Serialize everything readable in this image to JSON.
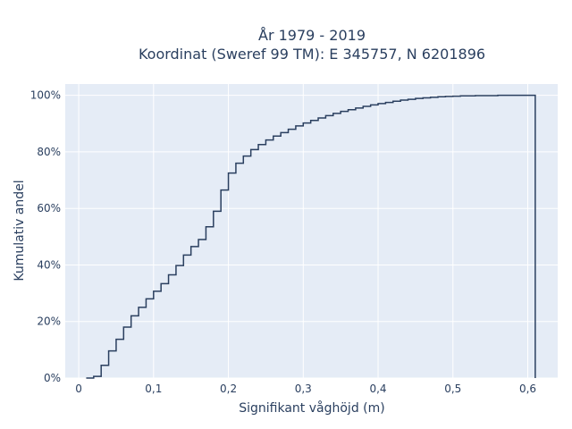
{
  "chart_data": {
    "type": "line",
    "line_shape": "step",
    "title_lines": [
      "År 1979 - 2019",
      "Koordinat (Sweref 99 TM): E 345757, N 6201896"
    ],
    "xlabel": "Signifikant våghöjd (m)",
    "ylabel": "Kumulativ andel",
    "xlim": [
      -0.018,
      0.64
    ],
    "ylim": [
      0,
      1.04
    ],
    "x_ticks": [
      0,
      0.1,
      0.2,
      0.3,
      0.4,
      0.5,
      0.6
    ],
    "x_tick_labels": [
      "0",
      "0,1",
      "0,2",
      "0,3",
      "0,4",
      "0,5",
      "0,6"
    ],
    "y_ticks": [
      0,
      0.2,
      0.4,
      0.6,
      0.8,
      1.0
    ],
    "y_tick_labels": [
      "0%",
      "20%",
      "40%",
      "60%",
      "80%",
      "100%"
    ],
    "grid": true,
    "colors": {
      "line": "#2a3f5f",
      "plot_bg": "#e5ecf6",
      "grid": "#ffffff"
    },
    "series": [
      {
        "x": [
          0.01,
          0.02,
          0.03,
          0.04,
          0.05,
          0.06,
          0.07,
          0.08,
          0.09,
          0.1,
          0.11,
          0.12,
          0.13,
          0.14,
          0.15,
          0.16,
          0.17,
          0.18,
          0.19,
          0.2,
          0.21,
          0.22,
          0.23,
          0.24,
          0.25,
          0.26,
          0.27,
          0.28,
          0.29,
          0.3,
          0.31,
          0.32,
          0.33,
          0.34,
          0.35,
          0.36,
          0.37,
          0.38,
          0.39,
          0.4,
          0.41,
          0.42,
          0.43,
          0.44,
          0.45,
          0.46,
          0.47,
          0.48,
          0.49,
          0.5,
          0.51,
          0.52,
          0.53,
          0.54,
          0.55,
          0.56,
          0.57,
          0.58,
          0.59,
          0.6,
          0.61
        ],
        "y": [
          0.0,
          0.006,
          0.045,
          0.096,
          0.137,
          0.18,
          0.22,
          0.25,
          0.28,
          0.307,
          0.334,
          0.365,
          0.398,
          0.435,
          0.465,
          0.49,
          0.535,
          0.59,
          0.665,
          0.725,
          0.76,
          0.785,
          0.808,
          0.826,
          0.842,
          0.856,
          0.868,
          0.88,
          0.892,
          0.902,
          0.911,
          0.92,
          0.928,
          0.936,
          0.943,
          0.949,
          0.955,
          0.961,
          0.966,
          0.971,
          0.975,
          0.979,
          0.983,
          0.986,
          0.989,
          0.991,
          0.993,
          0.995,
          0.996,
          0.997,
          0.998,
          0.998,
          0.999,
          0.999,
          0.999,
          1.0,
          1.0,
          1.0,
          1.0,
          1.0,
          1.0
        ]
      }
    ]
  }
}
